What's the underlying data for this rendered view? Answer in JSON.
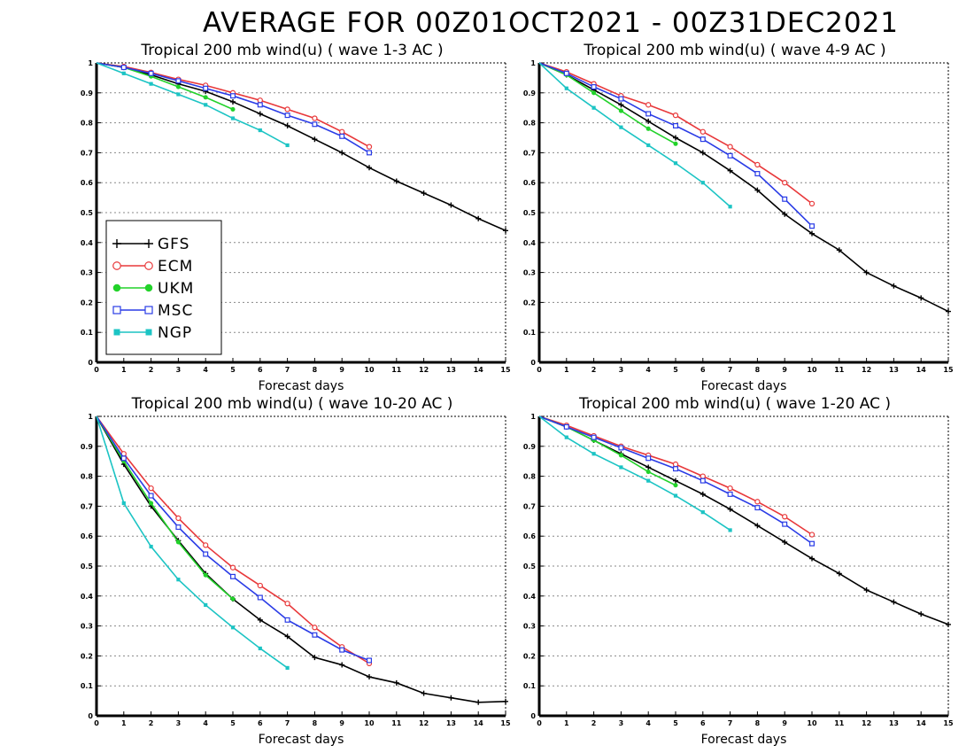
{
  "main_title": "AVERAGE FOR 00Z01OCT2021 - 00Z31DEC2021",
  "colors": {
    "GFS": "#000000",
    "ECM": "#e8383a",
    "UKM": "#22d22a",
    "MSC": "#2a3ce6",
    "NGP": "#1cc4c4"
  },
  "legend": [
    {
      "label": "GFS",
      "marker": "plus"
    },
    {
      "label": "ECM",
      "marker": "circle-open"
    },
    {
      "label": "UKM",
      "marker": "circle-filled"
    },
    {
      "label": "MSC",
      "marker": "square-open"
    },
    {
      "label": "NGP",
      "marker": "square-filled"
    }
  ],
  "chart_data": [
    {
      "type": "line",
      "title": "Tropical 200 mb wind(u) ( wave 1-3 AC )",
      "xlabel": "Forecast days",
      "ylabel": "",
      "xlim": [
        0,
        15
      ],
      "ylim": [
        0,
        1
      ],
      "x_ticks": [
        "0",
        "1",
        "2",
        "3",
        "4",
        "5",
        "6",
        "7",
        "8",
        "9",
        "10",
        "11",
        "12",
        "13",
        "14",
        "15"
      ],
      "y_ticks": [
        "0",
        "0.1",
        "0.2",
        "0.3",
        "0.4",
        "0.5",
        "0.6",
        "0.7",
        "0.8",
        "0.9",
        "1"
      ],
      "grid": true,
      "legend": "left-middle",
      "series": [
        {
          "name": "GFS",
          "x": [
            0,
            1,
            2,
            3,
            4,
            5,
            6,
            7,
            8,
            9,
            10,
            11,
            12,
            13,
            14,
            15
          ],
          "values": [
            1,
            0.985,
            0.96,
            0.93,
            0.905,
            0.87,
            0.83,
            0.79,
            0.745,
            0.7,
            0.65,
            0.605,
            0.565,
            0.525,
            0.48,
            0.44
          ]
        },
        {
          "name": "ECM",
          "x": [
            0,
            1,
            2,
            3,
            4,
            5,
            6,
            7,
            8,
            9,
            10
          ],
          "values": [
            1,
            0.988,
            0.968,
            0.945,
            0.925,
            0.9,
            0.875,
            0.845,
            0.815,
            0.77,
            0.72
          ]
        },
        {
          "name": "UKM",
          "x": [
            0,
            1,
            2,
            3,
            4,
            5
          ],
          "values": [
            1,
            0.985,
            0.955,
            0.92,
            0.885,
            0.845
          ]
        },
        {
          "name": "MSC",
          "x": [
            0,
            1,
            2,
            3,
            4,
            5,
            6,
            7,
            8,
            9,
            10
          ],
          "values": [
            1,
            0.985,
            0.965,
            0.94,
            0.915,
            0.89,
            0.86,
            0.825,
            0.795,
            0.755,
            0.7
          ]
        },
        {
          "name": "NGP",
          "x": [
            0,
            1,
            2,
            3,
            4,
            5,
            6,
            7
          ],
          "values": [
            1,
            0.965,
            0.93,
            0.895,
            0.86,
            0.815,
            0.775,
            0.725
          ]
        }
      ]
    },
    {
      "type": "line",
      "title": "Tropical 200 mb wind(u) ( wave 4-9 AC )",
      "xlabel": "Forecast days",
      "ylabel": "",
      "xlim": [
        0,
        15
      ],
      "ylim": [
        0,
        1
      ],
      "x_ticks": [
        "0",
        "1",
        "2",
        "3",
        "4",
        "5",
        "6",
        "7",
        "8",
        "9",
        "10",
        "11",
        "12",
        "13",
        "14",
        "15"
      ],
      "y_ticks": [
        "0",
        "0.1",
        "0.2",
        "0.3",
        "0.4",
        "0.5",
        "0.6",
        "0.7",
        "0.8",
        "0.9",
        "1"
      ],
      "grid": true,
      "series": [
        {
          "name": "GFS",
          "x": [
            0,
            1,
            2,
            3,
            4,
            5,
            6,
            7,
            8,
            9,
            10,
            11,
            12,
            13,
            14,
            15
          ],
          "values": [
            1,
            0.96,
            0.91,
            0.86,
            0.805,
            0.75,
            0.7,
            0.64,
            0.575,
            0.495,
            0.43,
            0.375,
            0.3,
            0.255,
            0.215,
            0.17
          ]
        },
        {
          "name": "ECM",
          "x": [
            0,
            1,
            2,
            3,
            4,
            5,
            6,
            7,
            8,
            9,
            10
          ],
          "values": [
            1,
            0.97,
            0.93,
            0.89,
            0.86,
            0.825,
            0.77,
            0.72,
            0.66,
            0.6,
            0.53
          ]
        },
        {
          "name": "UKM",
          "x": [
            0,
            1,
            2,
            3,
            4,
            5
          ],
          "values": [
            1,
            0.96,
            0.9,
            0.84,
            0.78,
            0.73
          ]
        },
        {
          "name": "MSC",
          "x": [
            0,
            1,
            2,
            3,
            4,
            5,
            6,
            7,
            8,
            9,
            10
          ],
          "values": [
            1,
            0.965,
            0.92,
            0.88,
            0.83,
            0.79,
            0.745,
            0.69,
            0.63,
            0.545,
            0.455
          ]
        },
        {
          "name": "NGP",
          "x": [
            0,
            1,
            2,
            3,
            4,
            5,
            6,
            7
          ],
          "values": [
            1,
            0.915,
            0.85,
            0.785,
            0.725,
            0.665,
            0.6,
            0.52
          ]
        }
      ]
    },
    {
      "type": "line",
      "title": "Tropical 200 mb wind(u) ( wave 10-20 AC )",
      "xlabel": "Forecast days",
      "ylabel": "",
      "xlim": [
        0,
        15
      ],
      "ylim": [
        0,
        1
      ],
      "x_ticks": [
        "0",
        "1",
        "2",
        "3",
        "4",
        "5",
        "6",
        "7",
        "8",
        "9",
        "10",
        "11",
        "12",
        "13",
        "14",
        "15"
      ],
      "y_ticks": [
        "0",
        "0.1",
        "0.2",
        "0.3",
        "0.4",
        "0.5",
        "0.6",
        "0.7",
        "0.8",
        "0.9",
        "1"
      ],
      "grid": true,
      "series": [
        {
          "name": "GFS",
          "x": [
            0,
            1,
            2,
            3,
            4,
            5,
            6,
            7,
            8,
            9,
            10,
            11,
            12,
            13,
            14,
            15
          ],
          "values": [
            1,
            0.84,
            0.7,
            0.585,
            0.475,
            0.39,
            0.32,
            0.265,
            0.195,
            0.17,
            0.13,
            0.11,
            0.075,
            0.06,
            0.045,
            0.048
          ]
        },
        {
          "name": "ECM",
          "x": [
            0,
            1,
            2,
            3,
            4,
            5,
            6,
            7,
            8,
            9,
            10
          ],
          "values": [
            1,
            0.875,
            0.76,
            0.66,
            0.57,
            0.495,
            0.435,
            0.375,
            0.295,
            0.23,
            0.175
          ]
        },
        {
          "name": "UKM",
          "x": [
            0,
            1,
            2,
            3,
            4,
            5
          ],
          "values": [
            1,
            0.85,
            0.71,
            0.58,
            0.47,
            0.39
          ]
        },
        {
          "name": "MSC",
          "x": [
            0,
            1,
            2,
            3,
            4,
            5,
            6,
            7,
            8,
            9,
            10
          ],
          "values": [
            1,
            0.86,
            0.735,
            0.63,
            0.54,
            0.465,
            0.395,
            0.32,
            0.27,
            0.22,
            0.185
          ]
        },
        {
          "name": "NGP",
          "x": [
            0,
            1,
            2,
            3,
            4,
            5,
            6,
            7
          ],
          "values": [
            1,
            0.71,
            0.565,
            0.455,
            0.37,
            0.295,
            0.225,
            0.16
          ]
        }
      ]
    },
    {
      "type": "line",
      "title": "Tropical 200 mb wind(u) ( wave 1-20 AC )",
      "xlabel": "Forecast days",
      "ylabel": "",
      "xlim": [
        0,
        15
      ],
      "ylim": [
        0,
        1
      ],
      "x_ticks": [
        "0",
        "1",
        "2",
        "3",
        "4",
        "5",
        "6",
        "7",
        "8",
        "9",
        "10",
        "11",
        "12",
        "13",
        "14",
        "15"
      ],
      "y_ticks": [
        "0",
        "0.1",
        "0.2",
        "0.3",
        "0.4",
        "0.5",
        "0.6",
        "0.7",
        "0.8",
        "0.9",
        "1"
      ],
      "grid": true,
      "series": [
        {
          "name": "GFS",
          "x": [
            0,
            1,
            2,
            3,
            4,
            5,
            6,
            7,
            8,
            9,
            10,
            11,
            12,
            13,
            14,
            15
          ],
          "values": [
            1,
            0.965,
            0.92,
            0.875,
            0.83,
            0.785,
            0.74,
            0.69,
            0.635,
            0.58,
            0.525,
            0.475,
            0.42,
            0.38,
            0.34,
            0.305
          ]
        },
        {
          "name": "ECM",
          "x": [
            0,
            1,
            2,
            3,
            4,
            5,
            6,
            7,
            8,
            9,
            10
          ],
          "values": [
            1,
            0.97,
            0.935,
            0.9,
            0.87,
            0.84,
            0.8,
            0.76,
            0.715,
            0.665,
            0.605
          ]
        },
        {
          "name": "UKM",
          "x": [
            0,
            1,
            2,
            3,
            4,
            5
          ],
          "values": [
            1,
            0.965,
            0.92,
            0.87,
            0.815,
            0.77
          ]
        },
        {
          "name": "MSC",
          "x": [
            0,
            1,
            2,
            3,
            4,
            5,
            6,
            7,
            8,
            9,
            10
          ],
          "values": [
            1,
            0.965,
            0.93,
            0.895,
            0.86,
            0.825,
            0.785,
            0.74,
            0.695,
            0.64,
            0.575
          ]
        },
        {
          "name": "NGP",
          "x": [
            0,
            1,
            2,
            3,
            4,
            5,
            6,
            7
          ],
          "values": [
            1,
            0.93,
            0.875,
            0.83,
            0.785,
            0.735,
            0.68,
            0.62
          ]
        }
      ]
    }
  ]
}
